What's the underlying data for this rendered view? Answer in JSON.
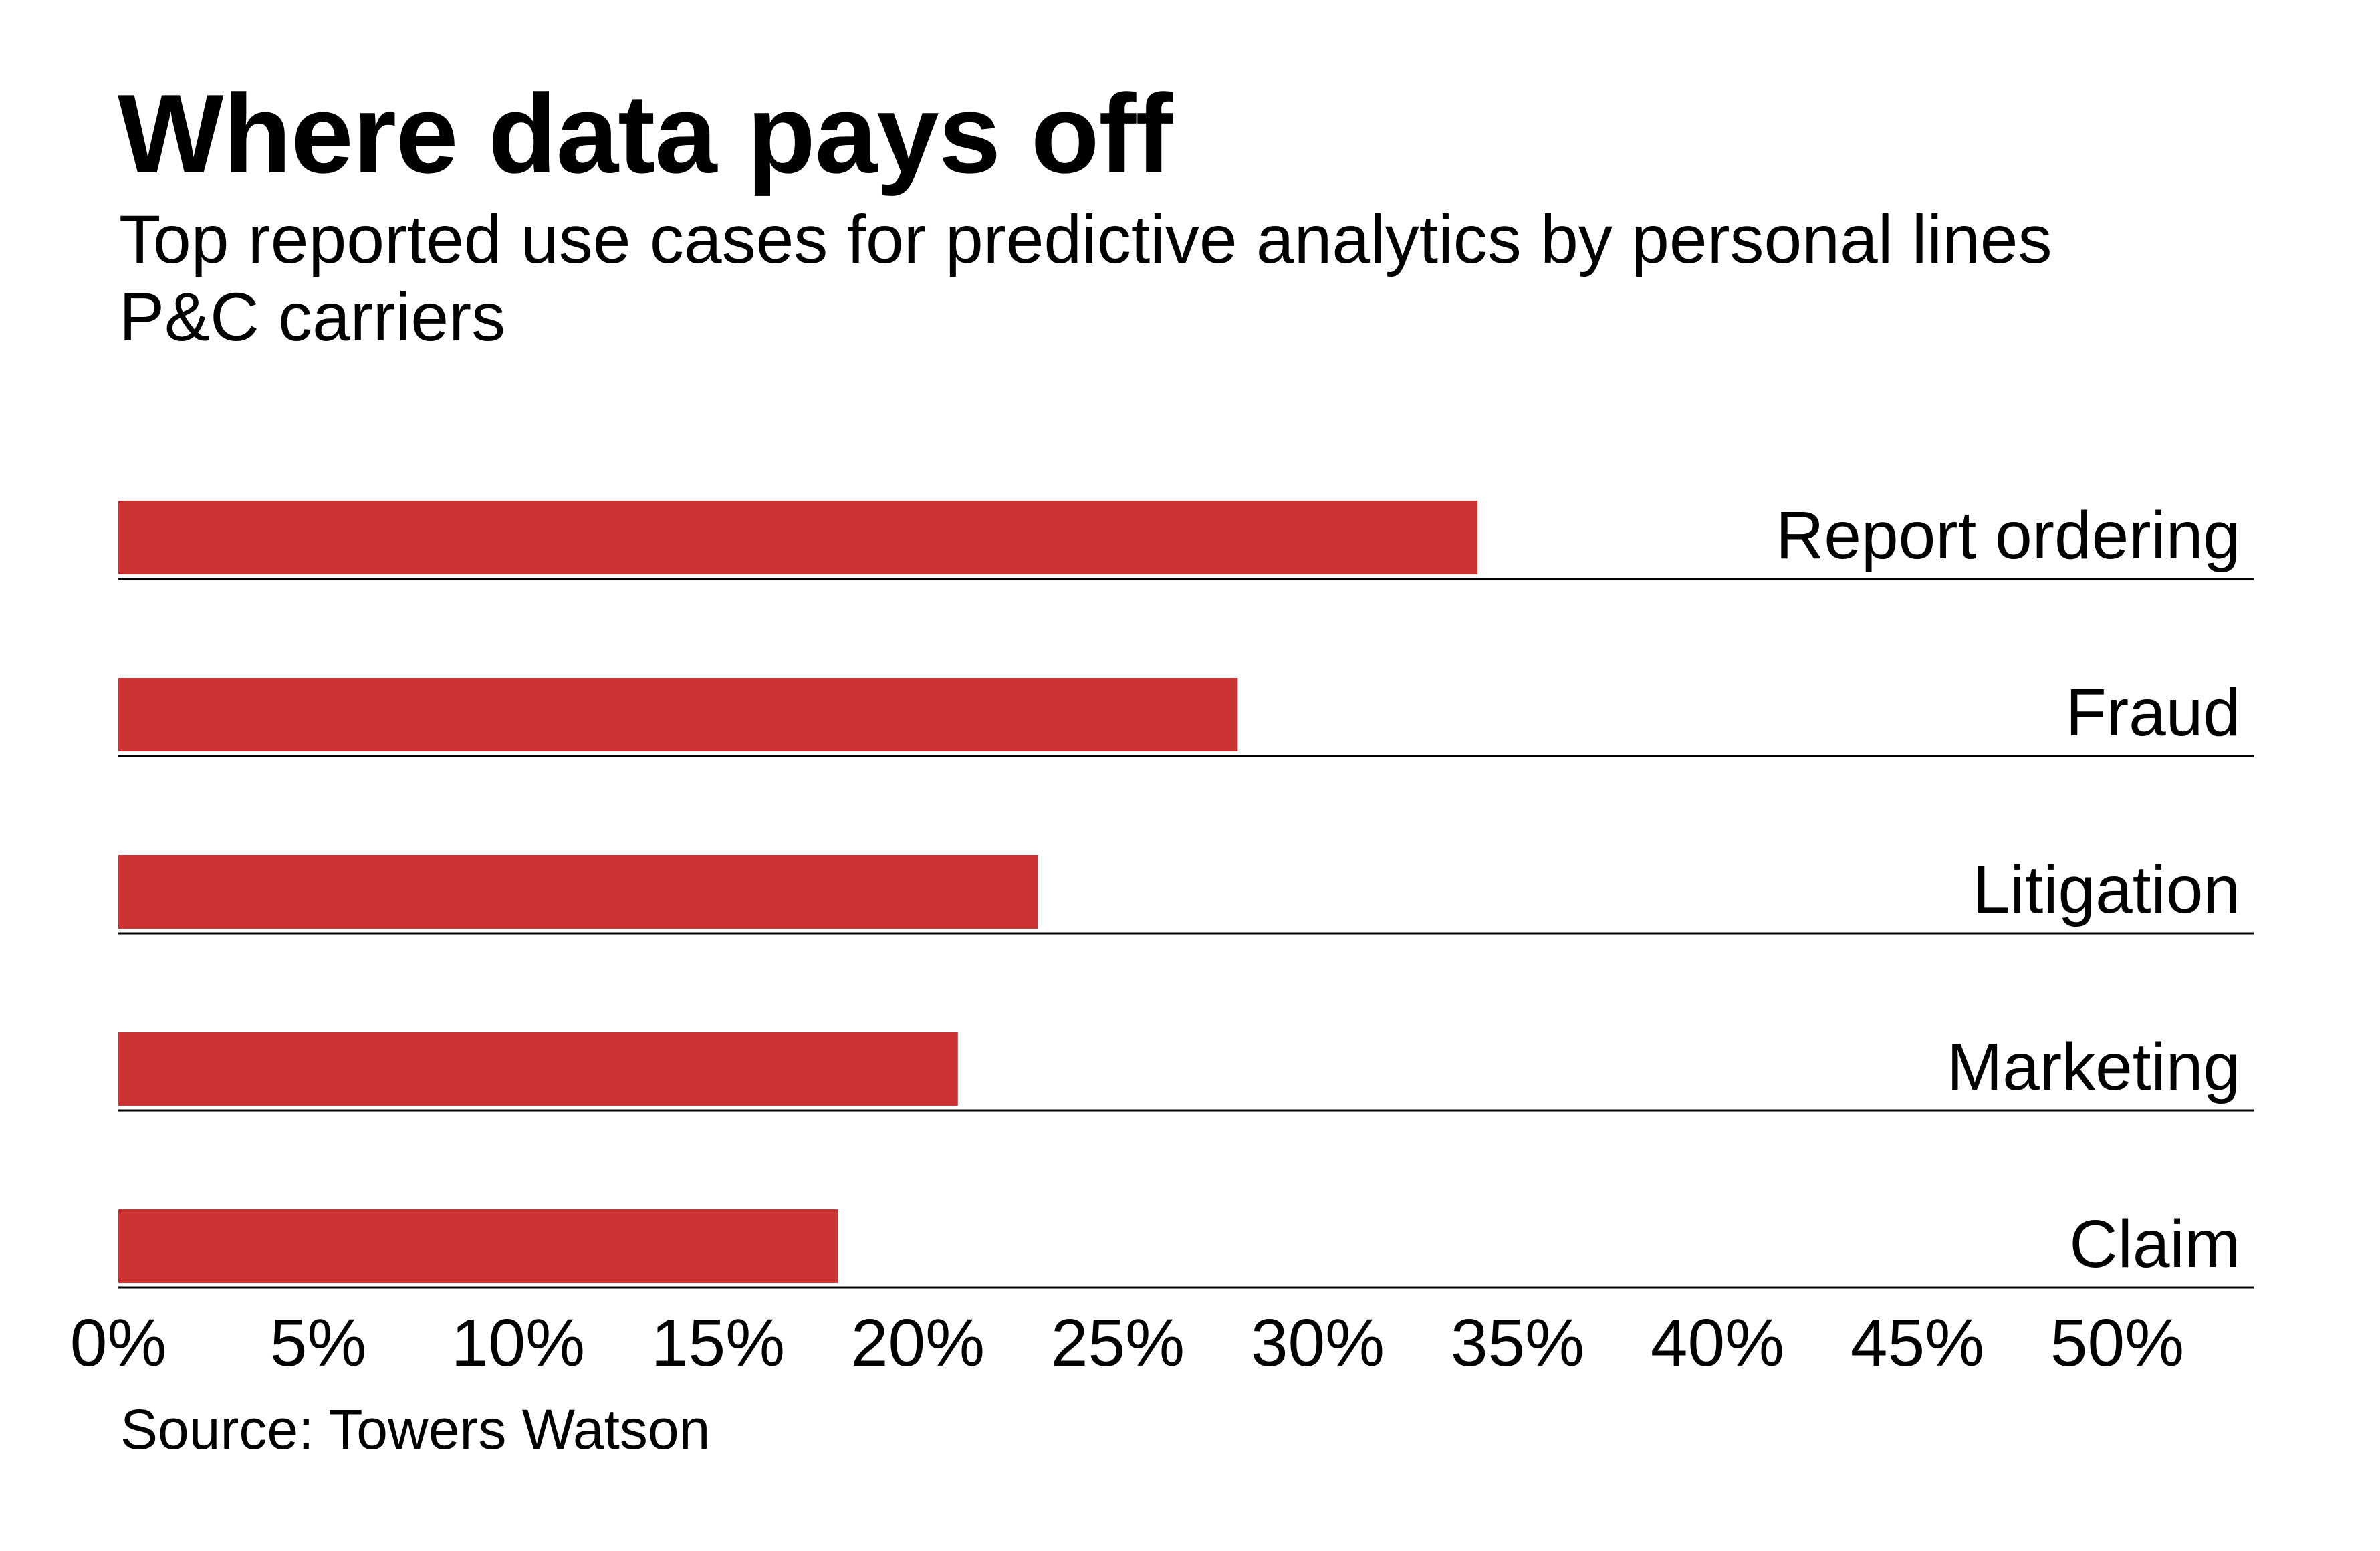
{
  "header": {
    "title": "Where data pays off",
    "subtitle": "Top reported use cases for predictive analytics by personal lines P&C carriers"
  },
  "footer": {
    "source": "Source: Towers Watson"
  },
  "colors": {
    "bar": "#cc3333",
    "baseline": "#000000",
    "text": "#000000",
    "background": "#ffffff"
  },
  "chart_data": {
    "type": "bar",
    "orientation": "horizontal",
    "title": "Where data pays off",
    "subtitle": "Top reported use cases for predictive analytics by personal lines P&C carriers",
    "categories": [
      "Report ordering",
      "Fraud",
      "Litigation",
      "Marketing",
      "Claim"
    ],
    "values": [
      34,
      28,
      23,
      21,
      18
    ],
    "unit": "%",
    "xlabel": "",
    "ylabel": "",
    "xlim": [
      0,
      50
    ],
    "x_ticks": [
      0,
      5,
      10,
      15,
      20,
      25,
      30,
      35,
      40,
      45,
      50
    ],
    "x_tick_labels": [
      "0%",
      "5%",
      "10%",
      "15%",
      "20%",
      "25%",
      "30%",
      "35%",
      "40%",
      "45%",
      "50%"
    ],
    "category_label_placement": "right-aligned above each bar's baseline",
    "grid": false,
    "legend": "none",
    "source": "Source: Towers Watson"
  }
}
